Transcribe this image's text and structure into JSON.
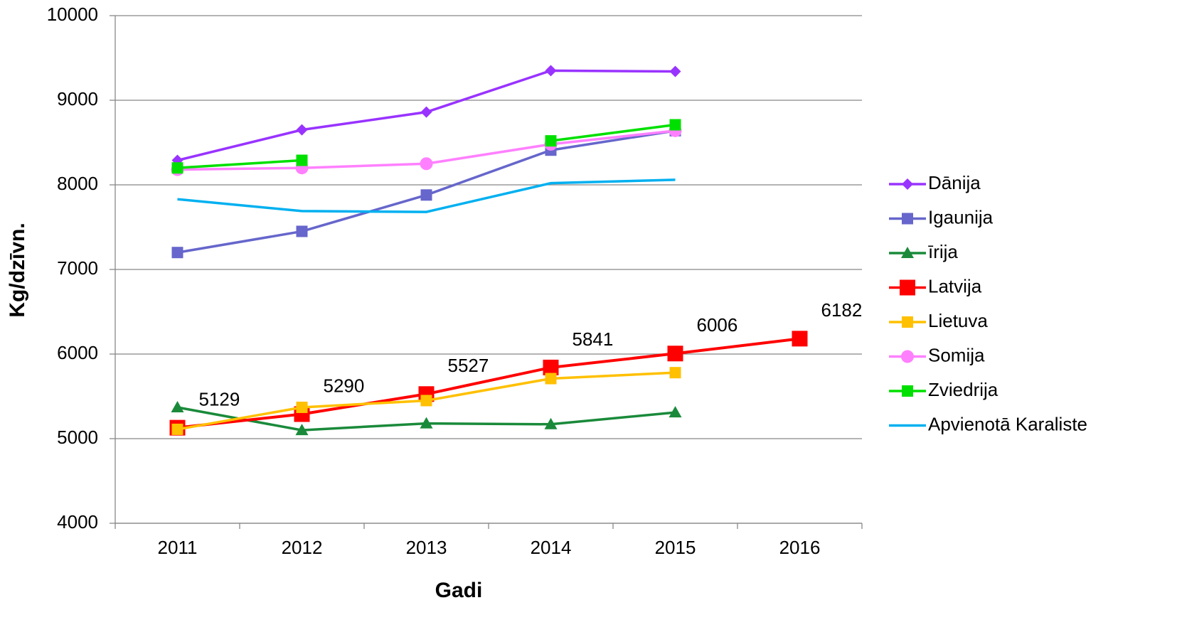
{
  "chart_data": {
    "type": "line",
    "x_label": "Gadi",
    "y_label": "Kg/dzīvn.",
    "categories": [
      "2011",
      "2012",
      "2013",
      "2014",
      "2015",
      "2016"
    ],
    "ylim": [
      4000,
      10000
    ],
    "yticks": [
      4000,
      5000,
      6000,
      7000,
      8000,
      9000,
      10000
    ],
    "grid": true,
    "legend": "right",
    "series": [
      {
        "name": "Dānija",
        "color": "#9933ff",
        "marker": "diamond",
        "values": [
          8290,
          8650,
          8860,
          9350,
          9340,
          null
        ]
      },
      {
        "name": "Igaunija",
        "color": "#6666cc",
        "marker": "square",
        "values": [
          7200,
          7450,
          7880,
          8410,
          8640,
          null
        ]
      },
      {
        "name": "īrija",
        "color": "#1a8a3a",
        "marker": "triangle",
        "values": [
          5370,
          5100,
          5180,
          5170,
          5310,
          null
        ]
      },
      {
        "name": "Latvija",
        "color": "#ff0000",
        "marker": "square-large",
        "data_labels": true,
        "values": [
          5129,
          5290,
          5527,
          5841,
          6006,
          6182
        ]
      },
      {
        "name": "Lietuva",
        "color": "#ffc000",
        "marker": "square",
        "values": [
          5110,
          5370,
          5450,
          5710,
          5780,
          null
        ]
      },
      {
        "name": "Somija",
        "color": "#ff80ff",
        "marker": "circle",
        "values": [
          8180,
          8200,
          8250,
          8480,
          8640,
          null
        ]
      },
      {
        "name": "Zviedrija",
        "color": "#00e000",
        "marker": "square",
        "values": [
          8200,
          8290,
          null,
          8520,
          8710,
          null
        ]
      },
      {
        "name": "Apvienotā Karaliste",
        "color": "#00b0f0",
        "marker": "none",
        "values": [
          7830,
          7690,
          7680,
          8020,
          8060,
          null
        ]
      }
    ]
  }
}
